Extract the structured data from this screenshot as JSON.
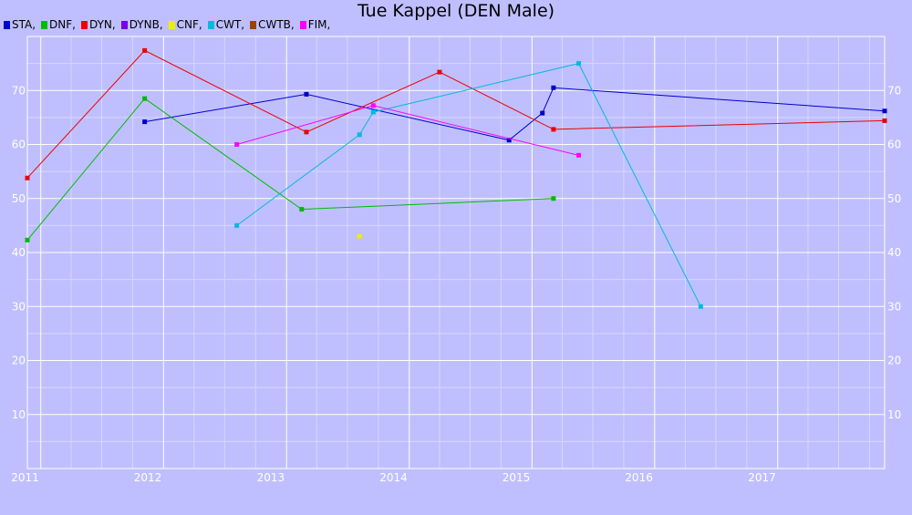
{
  "chart_data": {
    "type": "line",
    "title": "Tue Kappel (DEN Male)",
    "xlabel": "",
    "ylabel": "",
    "x_tick_labels": [
      "2011",
      "2012",
      "2013",
      "2014",
      "2015",
      "2016",
      "2017"
    ],
    "x_range": [
      "2010-11-22",
      "2017-11-15"
    ],
    "ylim": [
      0,
      80
    ],
    "y_ticks": [
      10,
      20,
      30,
      40,
      50,
      60,
      70
    ],
    "grid": true,
    "legend_position": "top-left",
    "legend_suffix": ",",
    "series": [
      {
        "name": "STA",
        "color": "#0000cc",
        "points": [
          {
            "x": "2011-11-06",
            "y": 64.2
          },
          {
            "x": "2013-03-01",
            "y": 69.3
          },
          {
            "x": "2014-10-25",
            "y": 60.8
          },
          {
            "x": "2015-02-01",
            "y": 65.8
          },
          {
            "x": "2015-03-06",
            "y": 70.5
          },
          {
            "x": "2017-11-15",
            "y": 66.2
          }
        ]
      },
      {
        "name": "DNF",
        "color": "#00bb00",
        "points": [
          {
            "x": "2010-11-22",
            "y": 42.3
          },
          {
            "x": "2011-11-06",
            "y": 68.5
          },
          {
            "x": "2013-02-15",
            "y": 48.0
          },
          {
            "x": "2015-03-06",
            "y": 50.0
          }
        ]
      },
      {
        "name": "DYN",
        "color": "#ee0000",
        "points": [
          {
            "x": "2010-11-22",
            "y": 53.8
          },
          {
            "x": "2011-11-06",
            "y": 77.4
          },
          {
            "x": "2013-03-01",
            "y": 62.3
          },
          {
            "x": "2014-04-01",
            "y": 73.4
          },
          {
            "x": "2015-03-06",
            "y": 62.8
          },
          {
            "x": "2017-11-15",
            "y": 64.4
          }
        ]
      },
      {
        "name": "DYNB",
        "color": "#7700ee",
        "points": []
      },
      {
        "name": "CNF",
        "color": "#eeee00",
        "points": [
          {
            "x": "2013-08-06",
            "y": 43.0
          }
        ]
      },
      {
        "name": "CWT",
        "color": "#00bbdd",
        "points": [
          {
            "x": "2012-08-06",
            "y": 45.0
          },
          {
            "x": "2013-08-06",
            "y": 61.8
          },
          {
            "x": "2013-09-16",
            "y": 66.0
          },
          {
            "x": "2015-05-20",
            "y": 75.0
          },
          {
            "x": "2016-05-17",
            "y": 30.0
          }
        ]
      },
      {
        "name": "CWTB",
        "color": "#994400",
        "points": []
      },
      {
        "name": "FIM",
        "color": "#ff00ff",
        "points": [
          {
            "x": "2012-08-06",
            "y": 60.0
          },
          {
            "x": "2013-09-16",
            "y": 67.2
          },
          {
            "x": "2015-05-20",
            "y": 58.0
          }
        ]
      }
    ]
  }
}
